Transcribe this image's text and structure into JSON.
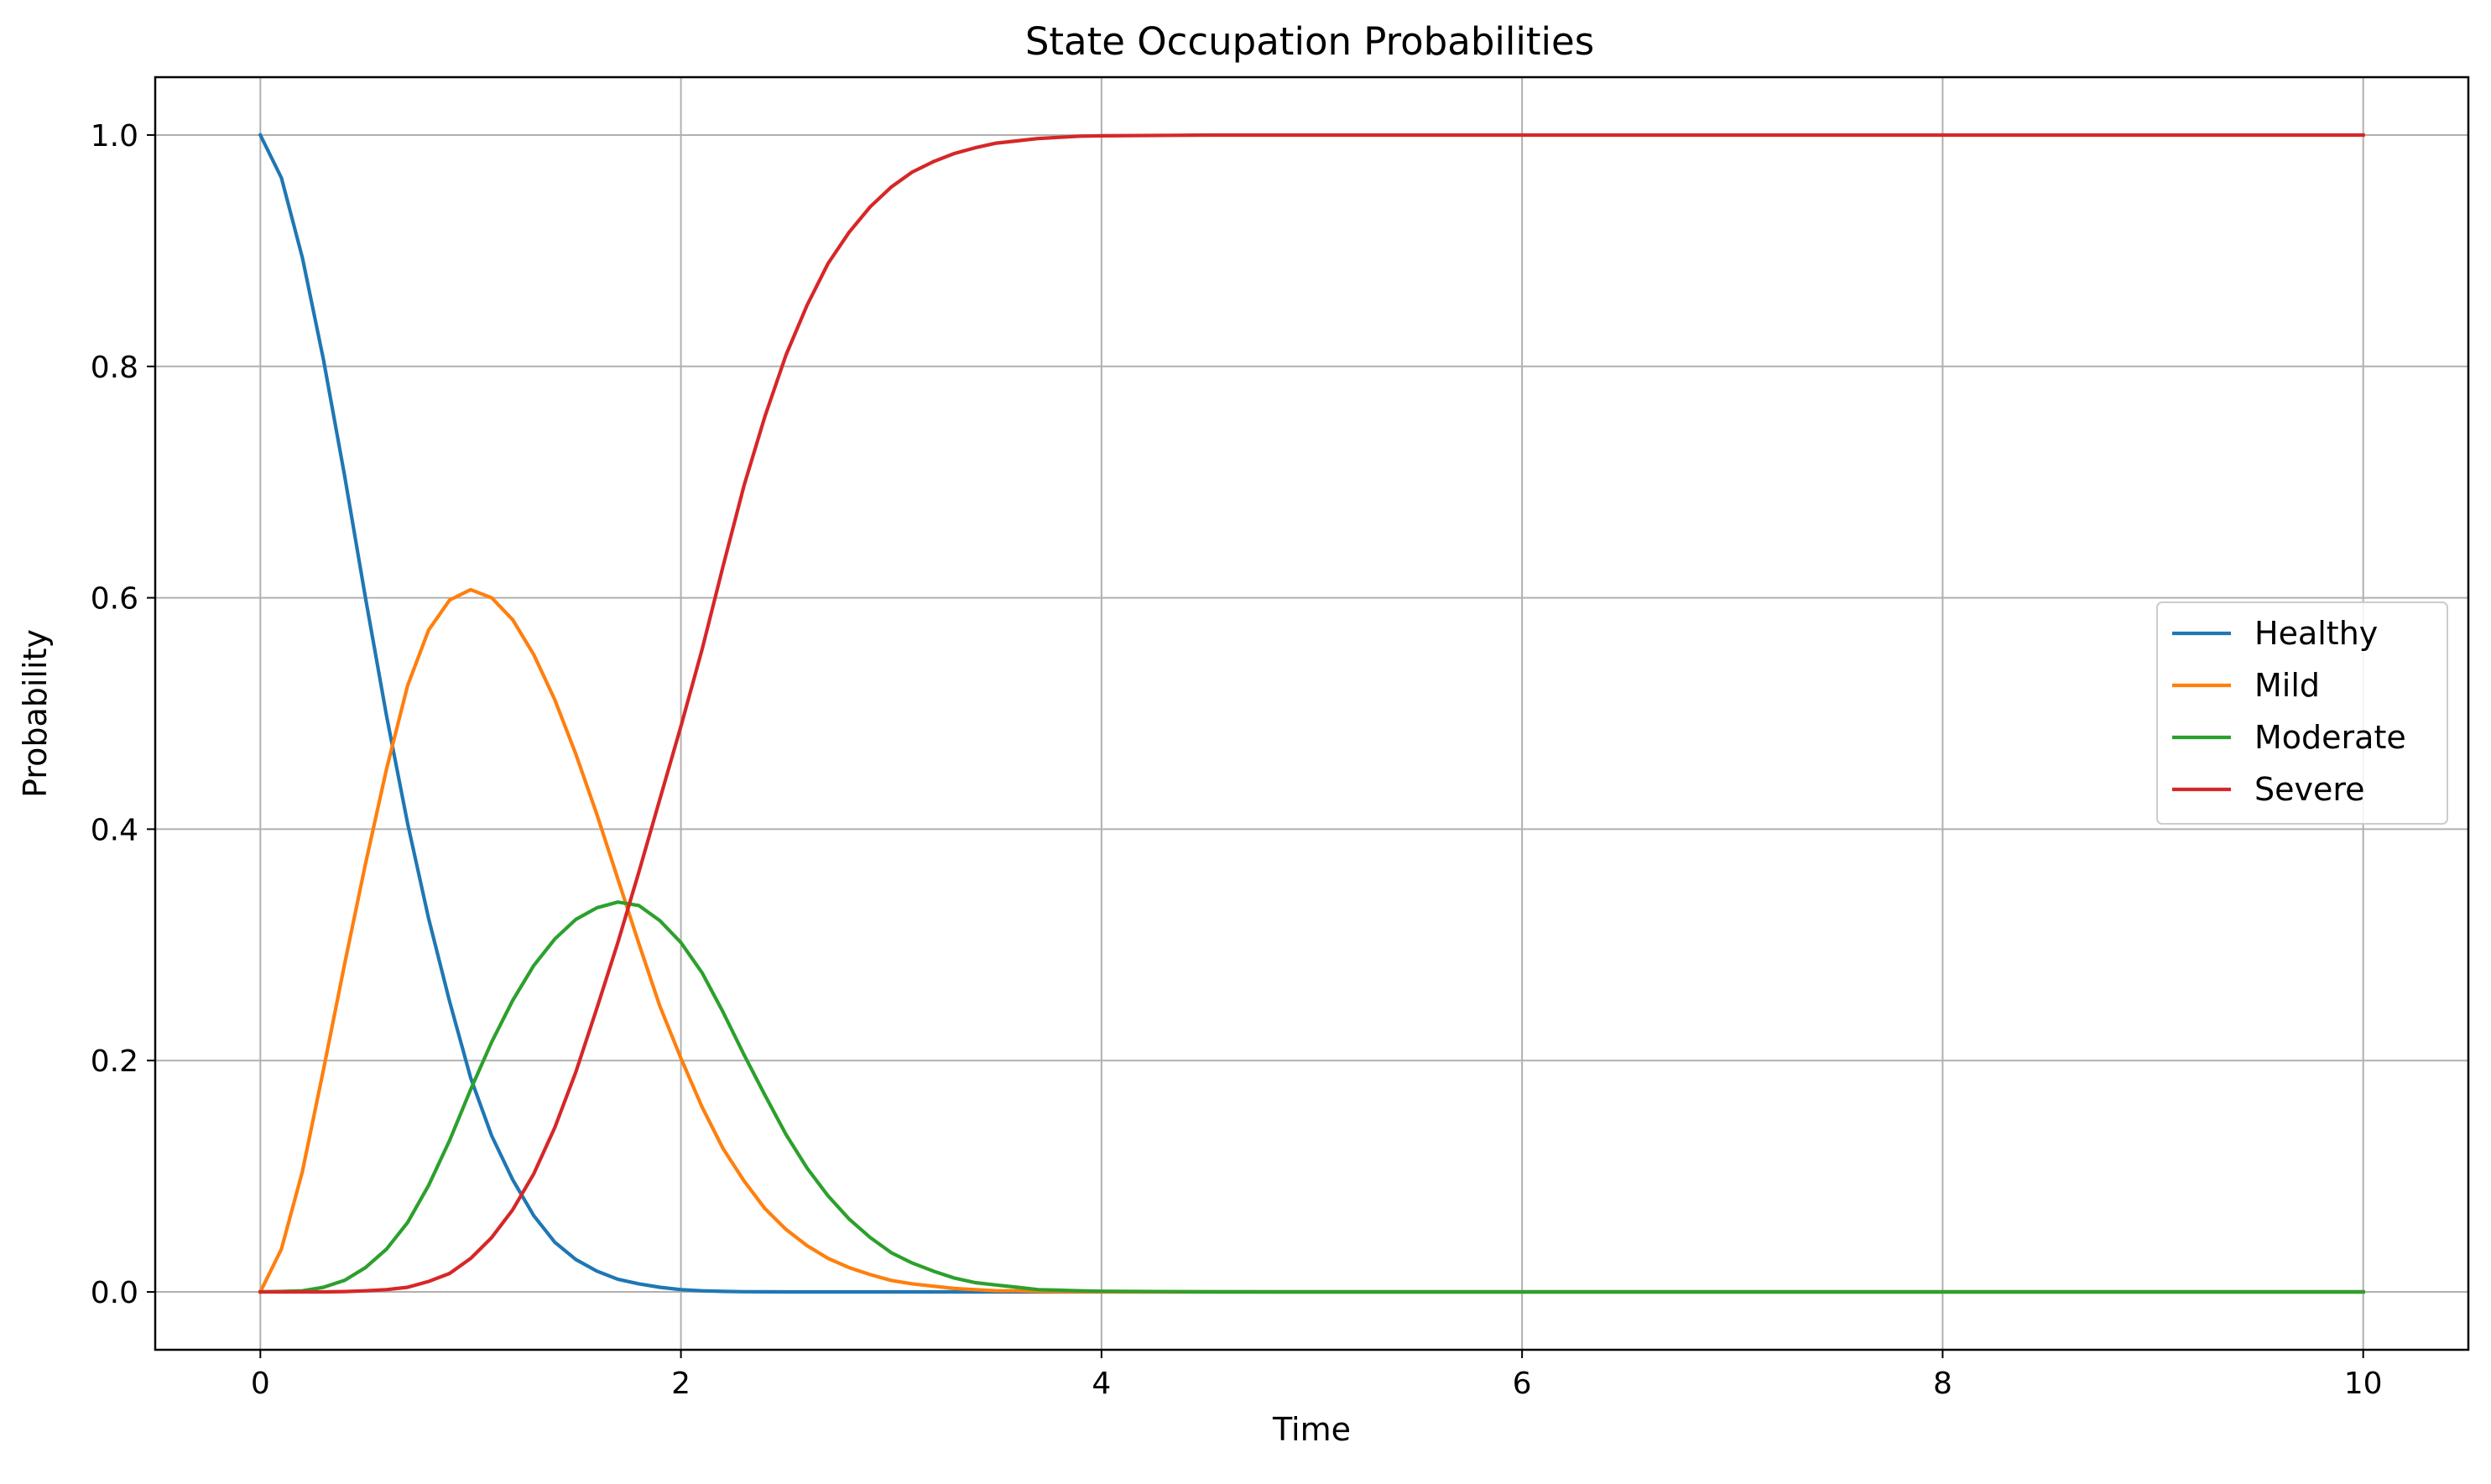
{
  "chart_data": {
    "type": "line",
    "title": "State Occupation Probabilities",
    "xlabel": "Time",
    "ylabel": "Probability",
    "xlim": [
      -0.5,
      10.5
    ],
    "ylim": [
      -0.05,
      1.05
    ],
    "xticks": [
      0,
      2,
      4,
      6,
      8,
      10
    ],
    "xtick_labels": [
      "0",
      "2",
      "4",
      "6",
      "8",
      "10"
    ],
    "yticks": [
      0.0,
      0.2,
      0.4,
      0.6,
      0.8,
      1.0
    ],
    "ytick_labels": [
      "0.0",
      "0.2",
      "0.4",
      "0.6",
      "0.8",
      "1.0"
    ],
    "grid": true,
    "legend_position": "center-right",
    "x": [
      0,
      0.1,
      0.2,
      0.3,
      0.4,
      0.5,
      0.6,
      0.7,
      0.8,
      0.9,
      1.0,
      1.1,
      1.2,
      1.3,
      1.4,
      1.5,
      1.6,
      1.7,
      1.8,
      1.9,
      2.0,
      2.1,
      2.2,
      2.3,
      2.4,
      2.5,
      2.6,
      2.7,
      2.8,
      2.9,
      3.0,
      3.1,
      3.2,
      3.3,
      3.4,
      3.5,
      3.6,
      3.7,
      3.8,
      3.9,
      4.0,
      4.5,
      5.0,
      6.0,
      7.0,
      8.0,
      9.0,
      10.0
    ],
    "series": [
      {
        "name": "Healthy",
        "color": "#1f77b4",
        "values": [
          1.0,
          0.963,
          0.894,
          0.806,
          0.706,
          0.6,
          0.498,
          0.405,
          0.323,
          0.251,
          0.185,
          0.135,
          0.097,
          0.066,
          0.043,
          0.028,
          0.018,
          0.011,
          0.007,
          0.004,
          0.002,
          0.001,
          0.0005,
          0.0002,
          0.0001,
          0,
          0,
          0,
          0,
          0,
          0,
          0,
          0,
          0,
          0,
          0,
          0,
          0,
          0,
          0,
          0,
          0,
          0,
          0,
          0,
          0,
          0,
          0
        ]
      },
      {
        "name": "Mild",
        "color": "#ff7f0e",
        "values": [
          0.0,
          0.037,
          0.104,
          0.192,
          0.283,
          0.37,
          0.452,
          0.524,
          0.572,
          0.598,
          0.607,
          0.6,
          0.581,
          0.551,
          0.512,
          0.465,
          0.413,
          0.357,
          0.301,
          0.247,
          0.202,
          0.16,
          0.124,
          0.096,
          0.072,
          0.054,
          0.04,
          0.029,
          0.021,
          0.015,
          0.01,
          0.007,
          0.005,
          0.003,
          0.002,
          0.001,
          0.001,
          0.0005,
          0.0003,
          0.0002,
          0.0001,
          0,
          0,
          0,
          0,
          0,
          0,
          0
        ]
      },
      {
        "name": "Moderate",
        "color": "#2ca02c",
        "values": [
          0.0,
          0.0004,
          0.001,
          0.004,
          0.01,
          0.021,
          0.037,
          0.06,
          0.092,
          0.131,
          0.175,
          0.216,
          0.252,
          0.282,
          0.305,
          0.322,
          0.332,
          0.337,
          0.334,
          0.321,
          0.302,
          0.276,
          0.242,
          0.205,
          0.17,
          0.136,
          0.107,
          0.083,
          0.063,
          0.047,
          0.034,
          0.025,
          0.018,
          0.012,
          0.008,
          0.006,
          0.004,
          0.002,
          0.0015,
          0.001,
          0.0006,
          0.0001,
          0,
          0,
          0,
          0,
          0,
          0
        ]
      },
      {
        "name": "Severe",
        "color": "#d62728",
        "values": [
          0.0,
          0.0,
          0.0,
          0.0,
          0.0003,
          0.001,
          0.002,
          0.004,
          0.009,
          0.016,
          0.029,
          0.047,
          0.071,
          0.102,
          0.142,
          0.19,
          0.245,
          0.302,
          0.363,
          0.426,
          0.489,
          0.555,
          0.627,
          0.697,
          0.757,
          0.81,
          0.853,
          0.889,
          0.916,
          0.938,
          0.955,
          0.968,
          0.977,
          0.984,
          0.989,
          0.993,
          0.995,
          0.997,
          0.998,
          0.999,
          0.9993,
          1.0,
          1.0,
          1.0,
          1.0,
          1.0,
          1.0,
          1.0
        ]
      }
    ]
  }
}
